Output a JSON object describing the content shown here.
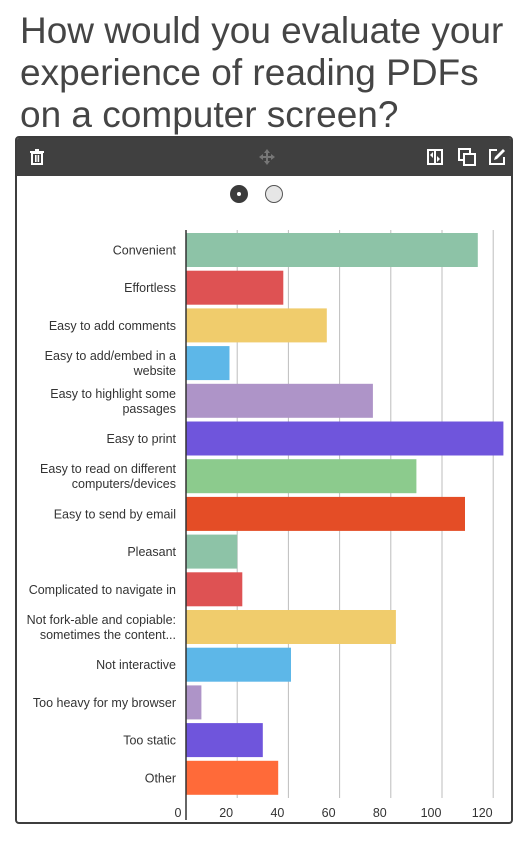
{
  "question": {
    "title": "How would you evaluate your experience of reading PDFs on a computer screen?"
  },
  "toolbar": {
    "icons": [
      "trash-icon",
      "move-icon",
      "swap-icon",
      "duplicate-icon",
      "edit-icon"
    ]
  },
  "toggle": {
    "options": [
      "option-1",
      "option-2"
    ],
    "selected": 0
  },
  "chart_data": {
    "type": "bar",
    "orientation": "horizontal",
    "categories": [
      "Convenient",
      "Effortless",
      "Easy to add comments",
      "Easy to add/embed in a website",
      "Easy to highlight some passages",
      "Easy to print",
      "Easy to read on different computers/devices",
      "Easy to send by email",
      "Pleasant",
      "Complicated to navigate in",
      "Not fork-able and copiable: sometimes the content...",
      "Not interactive",
      "Too heavy for my browser",
      "Too static",
      "Other"
    ],
    "category_label_lines": [
      [
        "Convenient"
      ],
      [
        "Effortless"
      ],
      [
        "Easy to add comments"
      ],
      [
        "Easy to add/embed in a",
        "website"
      ],
      [
        "Easy to highlight some",
        "passages"
      ],
      [
        "Easy to print"
      ],
      [
        "Easy to read on different",
        "computers/devices"
      ],
      [
        "Easy to send by email"
      ],
      [
        "Pleasant"
      ],
      [
        "Complicated to navigate in"
      ],
      [
        "Not fork-able and copiable:",
        "sometimes the content..."
      ],
      [
        "Not interactive"
      ],
      [
        "Too heavy for my browser"
      ],
      [
        "Too static"
      ],
      [
        "Other"
      ]
    ],
    "values": [
      114,
      38,
      55,
      17,
      73,
      124,
      90,
      109,
      20,
      22,
      82,
      41,
      6,
      30,
      36
    ],
    "colors": [
      "#8dc3a7",
      "#de5253",
      "#f0cc6c",
      "#5db7e8",
      "#ae94c8",
      "#6f55dc",
      "#8ccb8d",
      "#e44d26",
      "#8dc3a7",
      "#de5253",
      "#f0cc6c",
      "#5db7e8",
      "#ae94c8",
      "#6f55dc",
      "#ff6a39"
    ],
    "x_ticks": [
      0,
      20,
      40,
      60,
      80,
      100,
      120
    ],
    "xlim": [
      0,
      120
    ],
    "grid": true,
    "legend": "none"
  }
}
